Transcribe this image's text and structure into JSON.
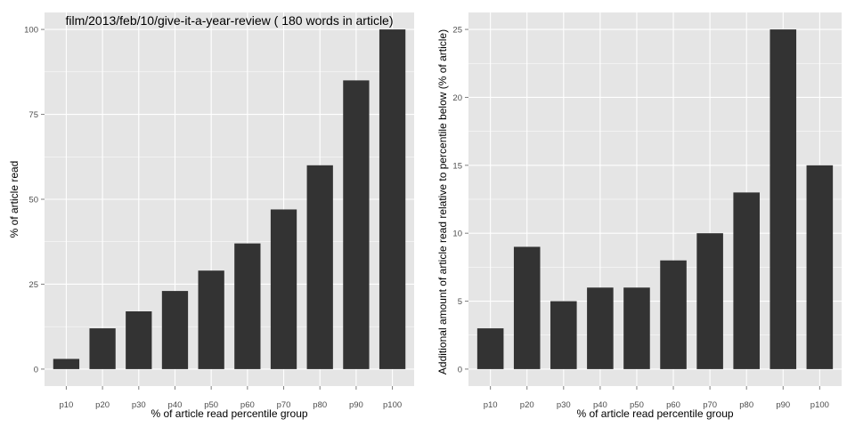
{
  "chart_data": [
    {
      "type": "bar",
      "title": "film/2013/feb/10/give-it-a-year-review ( 180 words in article)",
      "xlabel": "% of article read percentile group",
      "ylabel": "% of article read",
      "categories": [
        "p10",
        "p20",
        "p30",
        "p40",
        "p50",
        "p60",
        "p70",
        "p80",
        "p90",
        "p100"
      ],
      "values": [
        3,
        12,
        17,
        23,
        29,
        37,
        47,
        60,
        85,
        100
      ],
      "ylim": [
        -5,
        105
      ],
      "yticks": [
        0,
        25,
        50,
        75,
        100
      ],
      "ytick_labels": [
        "0",
        "25",
        "50",
        "75",
        "100"
      ],
      "grid": true,
      "colors": {
        "bar": "#333333",
        "panel": "#e5e5e5",
        "grid": "#ffffff"
      }
    },
    {
      "type": "bar",
      "title": "",
      "xlabel": "% of article read percentile group",
      "ylabel": "Additional amount of article read relative to percentile below (% of article)",
      "categories": [
        "p10",
        "p20",
        "p30",
        "p40",
        "p50",
        "p60",
        "p70",
        "p80",
        "p90",
        "p100"
      ],
      "values": [
        3,
        9,
        5,
        6,
        6,
        8,
        10,
        13,
        25,
        15
      ],
      "ylim": [
        -1.25,
        26.25
      ],
      "yticks": [
        0,
        5,
        10,
        15,
        20,
        25
      ],
      "ytick_labels": [
        "0",
        "5",
        "10",
        "15",
        "20",
        "25"
      ],
      "grid": true,
      "colors": {
        "bar": "#333333",
        "panel": "#e5e5e5",
        "grid": "#ffffff"
      }
    }
  ]
}
